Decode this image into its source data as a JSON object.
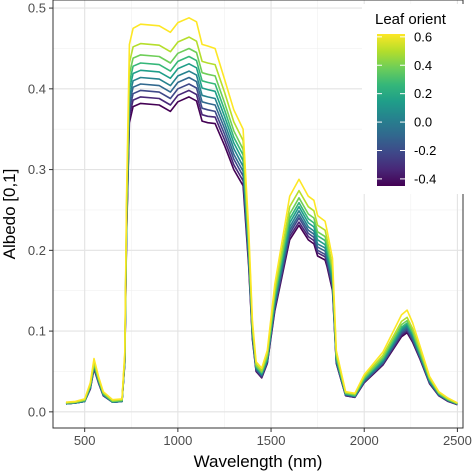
{
  "chart_data": {
    "type": "line",
    "xlabel": "Wavelength (nm)",
    "ylabel": "Albedo [0,1]",
    "xlim": [
      330,
      2530
    ],
    "ylim": [
      -0.02,
      0.51
    ],
    "x_ticks": [
      500,
      1000,
      1500,
      2000,
      2500
    ],
    "x_tick_labels": [
      "500",
      "1000",
      "1500",
      "2000",
      "2500"
    ],
    "y_ticks": [
      0.0,
      0.1,
      0.2,
      0.3,
      0.4,
      0.5
    ],
    "y_tick_labels": [
      "0.0",
      "0.1",
      "0.2",
      "0.3",
      "0.4",
      "0.5"
    ],
    "grid": true,
    "legend": {
      "title": "Leaf orient",
      "position": "top-right",
      "colorbar_range": [
        -0.45,
        0.62
      ],
      "ticks": [
        0.6,
        0.4,
        0.2,
        0.0,
        -0.2,
        -0.4
      ],
      "tick_labels": [
        "0.6",
        "0.4",
        "0.2",
        "0.0",
        "-0.2",
        "-0.4"
      ]
    },
    "colormap": [
      "#440154",
      "#482878",
      "#3e4989",
      "#31688e",
      "#26828e",
      "#1f9e89",
      "#35b779",
      "#6ece58",
      "#b5de2b",
      "#fde725"
    ],
    "series": [
      {
        "leaf_orient": -0.4,
        "color": "#440154",
        "x": [
          400,
          450,
          500,
          530,
          550,
          575,
          600,
          650,
          700,
          715,
          725,
          740,
          760,
          800,
          900,
          960,
          1000,
          1060,
          1100,
          1130,
          1160,
          1200,
          1250,
          1300,
          1350,
          1380,
          1400,
          1420,
          1450,
          1480,
          1520,
          1600,
          1650,
          1700,
          1730,
          1750,
          1790,
          1800,
          1830,
          1850,
          1900,
          1950,
          2000,
          2100,
          2200,
          2230,
          2260,
          2300,
          2350,
          2400,
          2450,
          2500
        ],
        "y": [
          0.01,
          0.011,
          0.013,
          0.028,
          0.053,
          0.035,
          0.02,
          0.012,
          0.013,
          0.06,
          0.22,
          0.358,
          0.378,
          0.382,
          0.38,
          0.372,
          0.384,
          0.39,
          0.385,
          0.36,
          0.358,
          0.357,
          0.33,
          0.3,
          0.28,
          0.18,
          0.09,
          0.05,
          0.042,
          0.06,
          0.125,
          0.213,
          0.231,
          0.213,
          0.208,
          0.193,
          0.188,
          0.18,
          0.15,
          0.06,
          0.02,
          0.018,
          0.036,
          0.058,
          0.093,
          0.098,
          0.086,
          0.065,
          0.035,
          0.02,
          0.013,
          0.009
        ]
      },
      {
        "leaf_orient": -0.3,
        "color": "#482878",
        "x": [
          400,
          450,
          500,
          530,
          550,
          575,
          600,
          650,
          700,
          715,
          725,
          740,
          760,
          800,
          900,
          960,
          1000,
          1060,
          1100,
          1130,
          1160,
          1200,
          1250,
          1300,
          1350,
          1380,
          1400,
          1420,
          1450,
          1480,
          1520,
          1600,
          1650,
          1700,
          1730,
          1750,
          1790,
          1800,
          1830,
          1850,
          1900,
          1950,
          2000,
          2100,
          2200,
          2230,
          2260,
          2300,
          2350,
          2400,
          2450,
          2500
        ],
        "y": [
          0.01,
          0.011,
          0.013,
          0.029,
          0.054,
          0.036,
          0.02,
          0.012,
          0.013,
          0.061,
          0.224,
          0.366,
          0.386,
          0.39,
          0.388,
          0.38,
          0.392,
          0.398,
          0.393,
          0.368,
          0.366,
          0.365,
          0.337,
          0.306,
          0.286,
          0.184,
          0.092,
          0.051,
          0.043,
          0.061,
          0.127,
          0.217,
          0.235,
          0.217,
          0.212,
          0.197,
          0.192,
          0.183,
          0.153,
          0.061,
          0.02,
          0.018,
          0.037,
          0.059,
          0.095,
          0.1,
          0.088,
          0.066,
          0.036,
          0.02,
          0.013,
          0.009
        ]
      },
      {
        "leaf_orient": -0.2,
        "color": "#3e4989",
        "x": [
          400,
          450,
          500,
          530,
          550,
          575,
          600,
          650,
          700,
          715,
          725,
          740,
          760,
          800,
          900,
          960,
          1000,
          1060,
          1100,
          1130,
          1160,
          1200,
          1250,
          1300,
          1350,
          1380,
          1400,
          1420,
          1450,
          1480,
          1520,
          1600,
          1650,
          1700,
          1730,
          1750,
          1790,
          1800,
          1830,
          1850,
          1900,
          1950,
          2000,
          2100,
          2200,
          2230,
          2260,
          2300,
          2350,
          2400,
          2450,
          2500
        ],
        "y": [
          0.01,
          0.011,
          0.013,
          0.029,
          0.055,
          0.036,
          0.021,
          0.012,
          0.013,
          0.062,
          0.228,
          0.374,
          0.394,
          0.398,
          0.396,
          0.388,
          0.4,
          0.406,
          0.401,
          0.376,
          0.374,
          0.372,
          0.344,
          0.313,
          0.292,
          0.188,
          0.094,
          0.052,
          0.044,
          0.062,
          0.13,
          0.221,
          0.24,
          0.221,
          0.216,
          0.2,
          0.195,
          0.187,
          0.156,
          0.062,
          0.021,
          0.019,
          0.037,
          0.06,
          0.097,
          0.102,
          0.089,
          0.067,
          0.036,
          0.021,
          0.014,
          0.009
        ]
      },
      {
        "leaf_orient": -0.1,
        "color": "#31688e",
        "x": [
          400,
          450,
          500,
          530,
          550,
          575,
          600,
          650,
          700,
          715,
          725,
          740,
          760,
          800,
          900,
          960,
          1000,
          1060,
          1100,
          1130,
          1160,
          1200,
          1250,
          1300,
          1350,
          1380,
          1400,
          1420,
          1450,
          1480,
          1520,
          1600,
          1650,
          1700,
          1730,
          1750,
          1790,
          1800,
          1830,
          1850,
          1900,
          1950,
          2000,
          2100,
          2200,
          2230,
          2260,
          2300,
          2350,
          2400,
          2450,
          2500
        ],
        "y": [
          0.01,
          0.011,
          0.013,
          0.03,
          0.056,
          0.037,
          0.021,
          0.012,
          0.013,
          0.063,
          0.232,
          0.382,
          0.402,
          0.406,
          0.404,
          0.396,
          0.408,
          0.414,
          0.409,
          0.384,
          0.382,
          0.38,
          0.351,
          0.319,
          0.298,
          0.192,
          0.096,
          0.053,
          0.045,
          0.063,
          0.132,
          0.225,
          0.244,
          0.225,
          0.22,
          0.204,
          0.199,
          0.19,
          0.159,
          0.063,
          0.021,
          0.019,
          0.038,
          0.061,
          0.099,
          0.104,
          0.091,
          0.068,
          0.037,
          0.021,
          0.014,
          0.01
        ]
      },
      {
        "leaf_orient": 0.0,
        "color": "#26828e",
        "x": [
          400,
          450,
          500,
          530,
          550,
          575,
          600,
          650,
          700,
          715,
          725,
          740,
          760,
          800,
          900,
          960,
          1000,
          1060,
          1100,
          1130,
          1160,
          1200,
          1250,
          1300,
          1350,
          1380,
          1400,
          1420,
          1450,
          1480,
          1520,
          1600,
          1650,
          1700,
          1730,
          1750,
          1790,
          1800,
          1830,
          1850,
          1900,
          1950,
          2000,
          2100,
          2200,
          2230,
          2260,
          2300,
          2350,
          2400,
          2450,
          2500
        ],
        "y": [
          0.01,
          0.011,
          0.013,
          0.03,
          0.057,
          0.037,
          0.021,
          0.012,
          0.013,
          0.064,
          0.236,
          0.39,
          0.41,
          0.414,
          0.412,
          0.404,
          0.416,
          0.422,
          0.417,
          0.392,
          0.39,
          0.388,
          0.358,
          0.326,
          0.304,
          0.196,
          0.098,
          0.054,
          0.046,
          0.064,
          0.135,
          0.229,
          0.249,
          0.229,
          0.224,
          0.208,
          0.203,
          0.194,
          0.162,
          0.064,
          0.022,
          0.019,
          0.039,
          0.062,
          0.101,
          0.106,
          0.093,
          0.069,
          0.038,
          0.022,
          0.014,
          0.01
        ]
      },
      {
        "leaf_orient": 0.1,
        "color": "#1f9e89",
        "x": [
          400,
          450,
          500,
          530,
          550,
          575,
          600,
          650,
          700,
          715,
          725,
          740,
          760,
          800,
          900,
          960,
          1000,
          1060,
          1100,
          1130,
          1160,
          1200,
          1250,
          1300,
          1350,
          1380,
          1400,
          1420,
          1450,
          1480,
          1520,
          1600,
          1650,
          1700,
          1730,
          1750,
          1790,
          1800,
          1830,
          1850,
          1900,
          1950,
          2000,
          2100,
          2200,
          2230,
          2260,
          2300,
          2350,
          2400,
          2450,
          2500
        ],
        "y": [
          0.011,
          0.012,
          0.014,
          0.031,
          0.058,
          0.038,
          0.022,
          0.013,
          0.014,
          0.066,
          0.241,
          0.399,
          0.419,
          0.423,
          0.421,
          0.413,
          0.425,
          0.431,
          0.426,
          0.401,
          0.399,
          0.397,
          0.366,
          0.333,
          0.311,
          0.2,
          0.1,
          0.055,
          0.047,
          0.066,
          0.138,
          0.234,
          0.254,
          0.234,
          0.229,
          0.213,
          0.207,
          0.198,
          0.166,
          0.066,
          0.022,
          0.02,
          0.04,
          0.064,
          0.103,
          0.108,
          0.095,
          0.071,
          0.039,
          0.022,
          0.014,
          0.01
        ]
      },
      {
        "leaf_orient": 0.2,
        "color": "#35b779",
        "x": [
          400,
          450,
          500,
          530,
          550,
          575,
          600,
          650,
          700,
          715,
          725,
          740,
          760,
          800,
          900,
          960,
          1000,
          1060,
          1100,
          1130,
          1160,
          1200,
          1250,
          1300,
          1350,
          1380,
          1400,
          1420,
          1450,
          1480,
          1520,
          1600,
          1650,
          1700,
          1730,
          1750,
          1790,
          1800,
          1830,
          1850,
          1900,
          1950,
          2000,
          2100,
          2200,
          2230,
          2260,
          2300,
          2350,
          2400,
          2450,
          2500
        ],
        "y": [
          0.011,
          0.012,
          0.014,
          0.032,
          0.059,
          0.039,
          0.022,
          0.013,
          0.014,
          0.067,
          0.246,
          0.408,
          0.428,
          0.432,
          0.43,
          0.422,
          0.434,
          0.44,
          0.435,
          0.41,
          0.408,
          0.406,
          0.374,
          0.34,
          0.318,
          0.204,
          0.102,
          0.056,
          0.048,
          0.067,
          0.141,
          0.239,
          0.259,
          0.239,
          0.234,
          0.218,
          0.212,
          0.202,
          0.17,
          0.067,
          0.023,
          0.02,
          0.041,
          0.065,
          0.105,
          0.11,
          0.097,
          0.072,
          0.04,
          0.023,
          0.015,
          0.01
        ]
      },
      {
        "leaf_orient": 0.3,
        "color": "#6ece58",
        "x": [
          400,
          450,
          500,
          530,
          550,
          575,
          600,
          650,
          700,
          715,
          725,
          740,
          760,
          800,
          900,
          960,
          1000,
          1060,
          1100,
          1130,
          1160,
          1200,
          1250,
          1300,
          1350,
          1380,
          1400,
          1420,
          1450,
          1480,
          1520,
          1600,
          1650,
          1700,
          1730,
          1750,
          1790,
          1800,
          1830,
          1850,
          1900,
          1950,
          2000,
          2100,
          2200,
          2230,
          2260,
          2300,
          2350,
          2400,
          2450,
          2500
        ],
        "y": [
          0.011,
          0.012,
          0.014,
          0.033,
          0.06,
          0.04,
          0.023,
          0.013,
          0.014,
          0.068,
          0.251,
          0.418,
          0.438,
          0.442,
          0.44,
          0.432,
          0.444,
          0.45,
          0.445,
          0.42,
          0.418,
          0.416,
          0.383,
          0.348,
          0.325,
          0.209,
          0.104,
          0.057,
          0.049,
          0.069,
          0.145,
          0.245,
          0.265,
          0.245,
          0.24,
          0.223,
          0.217,
          0.207,
          0.174,
          0.069,
          0.023,
          0.021,
          0.042,
          0.067,
          0.108,
          0.113,
          0.099,
          0.074,
          0.041,
          0.023,
          0.015,
          0.01
        ]
      },
      {
        "leaf_orient": 0.45,
        "color": "#b5de2b",
        "x": [
          400,
          450,
          500,
          530,
          550,
          575,
          600,
          650,
          700,
          715,
          725,
          740,
          760,
          800,
          900,
          960,
          1000,
          1060,
          1100,
          1130,
          1160,
          1200,
          1250,
          1300,
          1350,
          1380,
          1400,
          1420,
          1450,
          1480,
          1520,
          1600,
          1650,
          1700,
          1730,
          1750,
          1790,
          1800,
          1830,
          1850,
          1900,
          1950,
          2000,
          2100,
          2200,
          2230,
          2260,
          2300,
          2350,
          2400,
          2450,
          2500
        ],
        "y": [
          0.011,
          0.012,
          0.015,
          0.034,
          0.062,
          0.041,
          0.024,
          0.014,
          0.015,
          0.07,
          0.258,
          0.432,
          0.452,
          0.456,
          0.454,
          0.446,
          0.458,
          0.464,
          0.459,
          0.434,
          0.432,
          0.43,
          0.396,
          0.359,
          0.336,
          0.216,
          0.108,
          0.059,
          0.051,
          0.072,
          0.15,
          0.254,
          0.274,
          0.254,
          0.249,
          0.231,
          0.225,
          0.214,
          0.18,
          0.072,
          0.024,
          0.022,
          0.044,
          0.07,
          0.112,
          0.117,
          0.103,
          0.077,
          0.042,
          0.024,
          0.016,
          0.011
        ]
      },
      {
        "leaf_orient": 0.6,
        "color": "#fde725",
        "x": [
          400,
          450,
          500,
          530,
          550,
          575,
          600,
          650,
          700,
          715,
          725,
          740,
          760,
          800,
          900,
          960,
          1000,
          1060,
          1100,
          1130,
          1160,
          1200,
          1250,
          1300,
          1350,
          1380,
          1400,
          1420,
          1450,
          1480,
          1520,
          1600,
          1650,
          1700,
          1730,
          1750,
          1790,
          1800,
          1830,
          1850,
          1900,
          1950,
          2000,
          2100,
          2200,
          2230,
          2260,
          2300,
          2350,
          2400,
          2450,
          2500
        ],
        "y": [
          0.012,
          0.013,
          0.016,
          0.036,
          0.066,
          0.043,
          0.025,
          0.015,
          0.016,
          0.074,
          0.27,
          0.455,
          0.475,
          0.48,
          0.478,
          0.47,
          0.482,
          0.488,
          0.483,
          0.455,
          0.453,
          0.45,
          0.412,
          0.374,
          0.35,
          0.226,
          0.113,
          0.062,
          0.054,
          0.076,
          0.158,
          0.267,
          0.288,
          0.267,
          0.262,
          0.243,
          0.236,
          0.225,
          0.19,
          0.076,
          0.025,
          0.023,
          0.046,
          0.074,
          0.12,
          0.126,
          0.11,
          0.081,
          0.044,
          0.025,
          0.017,
          0.011
        ]
      }
    ]
  }
}
